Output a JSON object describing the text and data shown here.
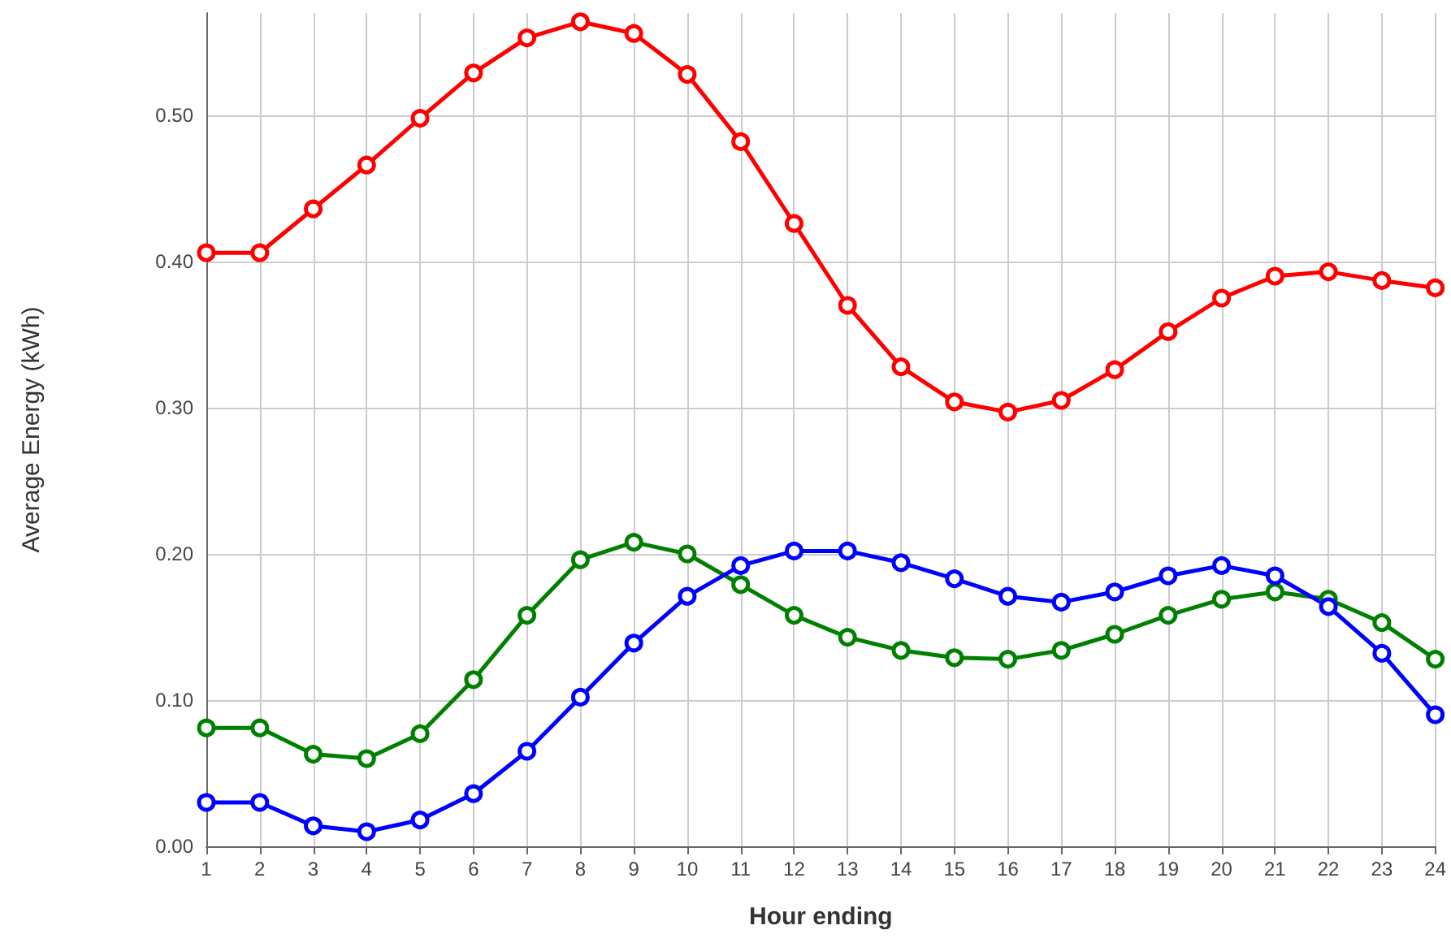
{
  "chart_data": {
    "type": "line",
    "xlabel": "Hour ending",
    "ylabel": "Average Energy (kWh)",
    "x": [
      1,
      2,
      3,
      4,
      5,
      6,
      7,
      8,
      9,
      10,
      11,
      12,
      13,
      14,
      15,
      16,
      17,
      18,
      19,
      20,
      21,
      22,
      23,
      24
    ],
    "xlim": [
      1,
      24
    ],
    "xticks": [
      1,
      2,
      3,
      4,
      5,
      6,
      7,
      8,
      9,
      10,
      11,
      12,
      13,
      14,
      15,
      16,
      17,
      18,
      19,
      20,
      21,
      22,
      23,
      24
    ],
    "ylim": [
      0,
      0.57
    ],
    "yticks": [
      {
        "value": 0,
        "label": "0.00"
      },
      {
        "value": 0.1,
        "label": "0.10"
      },
      {
        "value": 0.2,
        "label": "0.20"
      },
      {
        "value": 0.3,
        "label": "0.30"
      },
      {
        "value": 0.4,
        "label": "0.40"
      },
      {
        "value": 0.5,
        "label": "0.50"
      }
    ],
    "grid": true,
    "marker": "circle",
    "line_style": "solid",
    "series": [
      {
        "color": "#ff0000",
        "values": [
          0.406,
          0.406,
          0.436,
          0.466,
          0.498,
          0.529,
          0.553,
          0.564,
          0.556,
          0.528,
          0.482,
          0.426,
          0.37,
          0.328,
          0.304,
          0.297,
          0.305,
          0.326,
          0.352,
          0.375,
          0.39,
          0.393,
          0.387,
          0.382
        ]
      },
      {
        "color": "#008000",
        "values": [
          0.081,
          0.081,
          0.063,
          0.06,
          0.077,
          0.114,
          0.158,
          0.196,
          0.208,
          0.2,
          0.179,
          0.158,
          0.143,
          0.134,
          0.129,
          0.128,
          0.134,
          0.145,
          0.158,
          0.169,
          0.174,
          0.169,
          0.153,
          0.128
        ]
      },
      {
        "color": "#0000ff",
        "values": [
          0.03,
          0.03,
          0.014,
          0.01,
          0.018,
          0.036,
          0.065,
          0.102,
          0.139,
          0.171,
          0.192,
          0.202,
          0.202,
          0.194,
          0.183,
          0.171,
          0.167,
          0.174,
          0.185,
          0.192,
          0.185,
          0.164,
          0.132,
          0.09
        ]
      }
    ]
  }
}
